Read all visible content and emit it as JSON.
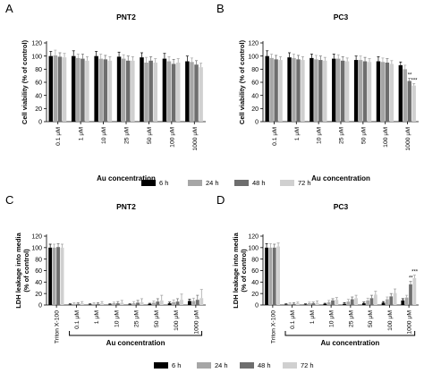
{
  "colors": {
    "6 h": "#000000",
    "24 h": "#a6a6a6",
    "48 h": "#6e6e6e",
    "72 h": "#d0d0d0"
  },
  "legend_top": {
    "items": [
      "6 h",
      "24 h",
      "48 h",
      "72 h"
    ]
  },
  "legend_bottom": {
    "items": [
      "6 h",
      "24 h",
      "48 h",
      "72 h"
    ]
  },
  "chart_data": [
    {
      "panel": "A",
      "type": "bar",
      "title": "PNT2",
      "ylabel": "Cell viability (% of control)",
      "xlabel": "Au concentration",
      "ylim": [
        0,
        120
      ],
      "yticks": [
        0,
        20,
        40,
        60,
        80,
        100,
        120
      ],
      "categories": [
        "0.1 μM",
        "1 μM",
        "10 μM",
        "25 μM",
        "50 μM",
        "100 μM",
        "1000 μM"
      ],
      "series": [
        {
          "name": "6 h",
          "values": [
            100,
            100,
            100,
            99,
            98,
            96,
            92
          ],
          "errors": [
            7,
            8,
            7,
            7,
            7,
            8,
            8
          ]
        },
        {
          "name": "24 h",
          "values": [
            101,
            97,
            96,
            96,
            90,
            92,
            91
          ],
          "errors": [
            8,
            6,
            7,
            6,
            8,
            7,
            6
          ]
        },
        {
          "name": "48 h",
          "values": [
            99,
            96,
            95,
            93,
            93,
            88,
            87
          ],
          "errors": [
            6,
            7,
            6,
            7,
            6,
            7,
            6
          ]
        },
        {
          "name": "72 h",
          "values": [
            98,
            93,
            93,
            93,
            90,
            90,
            83
          ],
          "errors": [
            6,
            6,
            6,
            6,
            6,
            6,
            6
          ]
        }
      ],
      "annotations": []
    },
    {
      "panel": "B",
      "type": "bar",
      "title": "PC3",
      "ylabel": "Cell viability (% of control)",
      "xlabel": "Au concentration",
      "ylim": [
        0,
        120
      ],
      "yticks": [
        0,
        20,
        40,
        60,
        80,
        100,
        120
      ],
      "categories": [
        "0.1 μM",
        "1 μM",
        "10 μM",
        "25 μM",
        "50 μM",
        "100 μM",
        "1000 μM"
      ],
      "series": [
        {
          "name": "6 h",
          "values": [
            100,
            98,
            97,
            96,
            94,
            92,
            86
          ],
          "errors": [
            8,
            7,
            6,
            7,
            6,
            7,
            5
          ]
        },
        {
          "name": "24 h",
          "values": [
            97,
            97,
            95,
            96,
            94,
            91,
            80
          ],
          "errors": [
            6,
            6,
            6,
            6,
            6,
            6,
            6
          ]
        },
        {
          "name": "48 h",
          "values": [
            95,
            95,
            94,
            93,
            92,
            90,
            62
          ],
          "errors": [
            6,
            6,
            6,
            6,
            6,
            6,
            4
          ]
        },
        {
          "name": "72 h",
          "values": [
            94,
            94,
            93,
            92,
            91,
            88,
            55
          ],
          "errors": [
            5,
            5,
            5,
            5,
            5,
            5,
            3
          ]
        }
      ],
      "annotations": [
        {
          "category": "1000 μM",
          "series": "48 h",
          "text": "**"
        },
        {
          "category": "1000 μM",
          "series": "72 h",
          "text": "***"
        }
      ]
    },
    {
      "panel": "C",
      "type": "bar",
      "title": "PNT2",
      "ylabel": "LDH leakage into media",
      "ylabel2": "(% of control)",
      "xlabel": "Au  concentration",
      "ylim": [
        0,
        120
      ],
      "yticks": [
        0,
        20,
        40,
        60,
        80,
        100,
        120
      ],
      "categories": [
        "Triton X-100",
        "0.1 μM",
        "1 μM",
        "10 μM",
        "25 μM",
        "50 μM",
        "100 μM",
        "1000 μM"
      ],
      "series": [
        {
          "name": "6 h",
          "values": [
            100,
            1,
            1,
            1,
            1,
            2,
            3,
            7
          ],
          "errors": [
            6,
            1,
            1,
            1,
            1,
            1,
            2,
            3
          ]
        },
        {
          "name": "24 h",
          "values": [
            100,
            2,
            2,
            3,
            3,
            4,
            5,
            7
          ],
          "errors": [
            6,
            2,
            2,
            2,
            3,
            3,
            4,
            5
          ]
        },
        {
          "name": "48 h",
          "values": [
            101,
            2,
            2,
            3,
            4,
            6,
            6,
            9
          ],
          "errors": [
            6,
            2,
            2,
            3,
            4,
            5,
            5,
            8
          ]
        },
        {
          "name": "72 h",
          "values": [
            100,
            3,
            3,
            4,
            5,
            8,
            9,
            12
          ],
          "errors": [
            6,
            3,
            3,
            4,
            6,
            9,
            10,
            15
          ]
        }
      ],
      "annotations": []
    },
    {
      "panel": "D",
      "type": "bar",
      "title": "PC3",
      "ylabel": "LDH leakage into media",
      "ylabel2": "(% of control)",
      "xlabel": "Au  concentration",
      "ylim": [
        0,
        120
      ],
      "yticks": [
        0,
        20,
        40,
        60,
        80,
        100,
        120
      ],
      "categories": [
        "Triton X-100",
        "0.1 μM",
        "1 μM",
        "10 μM",
        "25 μM",
        "50 μM",
        "100 μM",
        "1000 μM"
      ],
      "series": [
        {
          "name": "6 h",
          "values": [
            100,
            1,
            1,
            2,
            2,
            3,
            4,
            8
          ],
          "errors": [
            7,
            1,
            1,
            1,
            2,
            2,
            2,
            3
          ]
        },
        {
          "name": "24 h",
          "values": [
            100,
            2,
            3,
            5,
            6,
            8,
            10,
            13
          ],
          "errors": [
            7,
            2,
            2,
            3,
            4,
            4,
            4,
            4
          ]
        },
        {
          "name": "48 h",
          "values": [
            100,
            2,
            3,
            8,
            10,
            12,
            15,
            36
          ],
          "errors": [
            6,
            2,
            2,
            3,
            4,
            5,
            5,
            5
          ]
        },
        {
          "name": "72 h",
          "values": [
            102,
            3,
            4,
            9,
            12,
            18,
            21,
            47
          ],
          "errors": [
            6,
            2,
            3,
            4,
            5,
            6,
            7,
            5
          ]
        }
      ],
      "annotations": [
        {
          "category": "1000 μM",
          "series": "48 h",
          "text": "**"
        },
        {
          "category": "1000 μM",
          "series": "72 h",
          "text": "***"
        }
      ]
    }
  ]
}
